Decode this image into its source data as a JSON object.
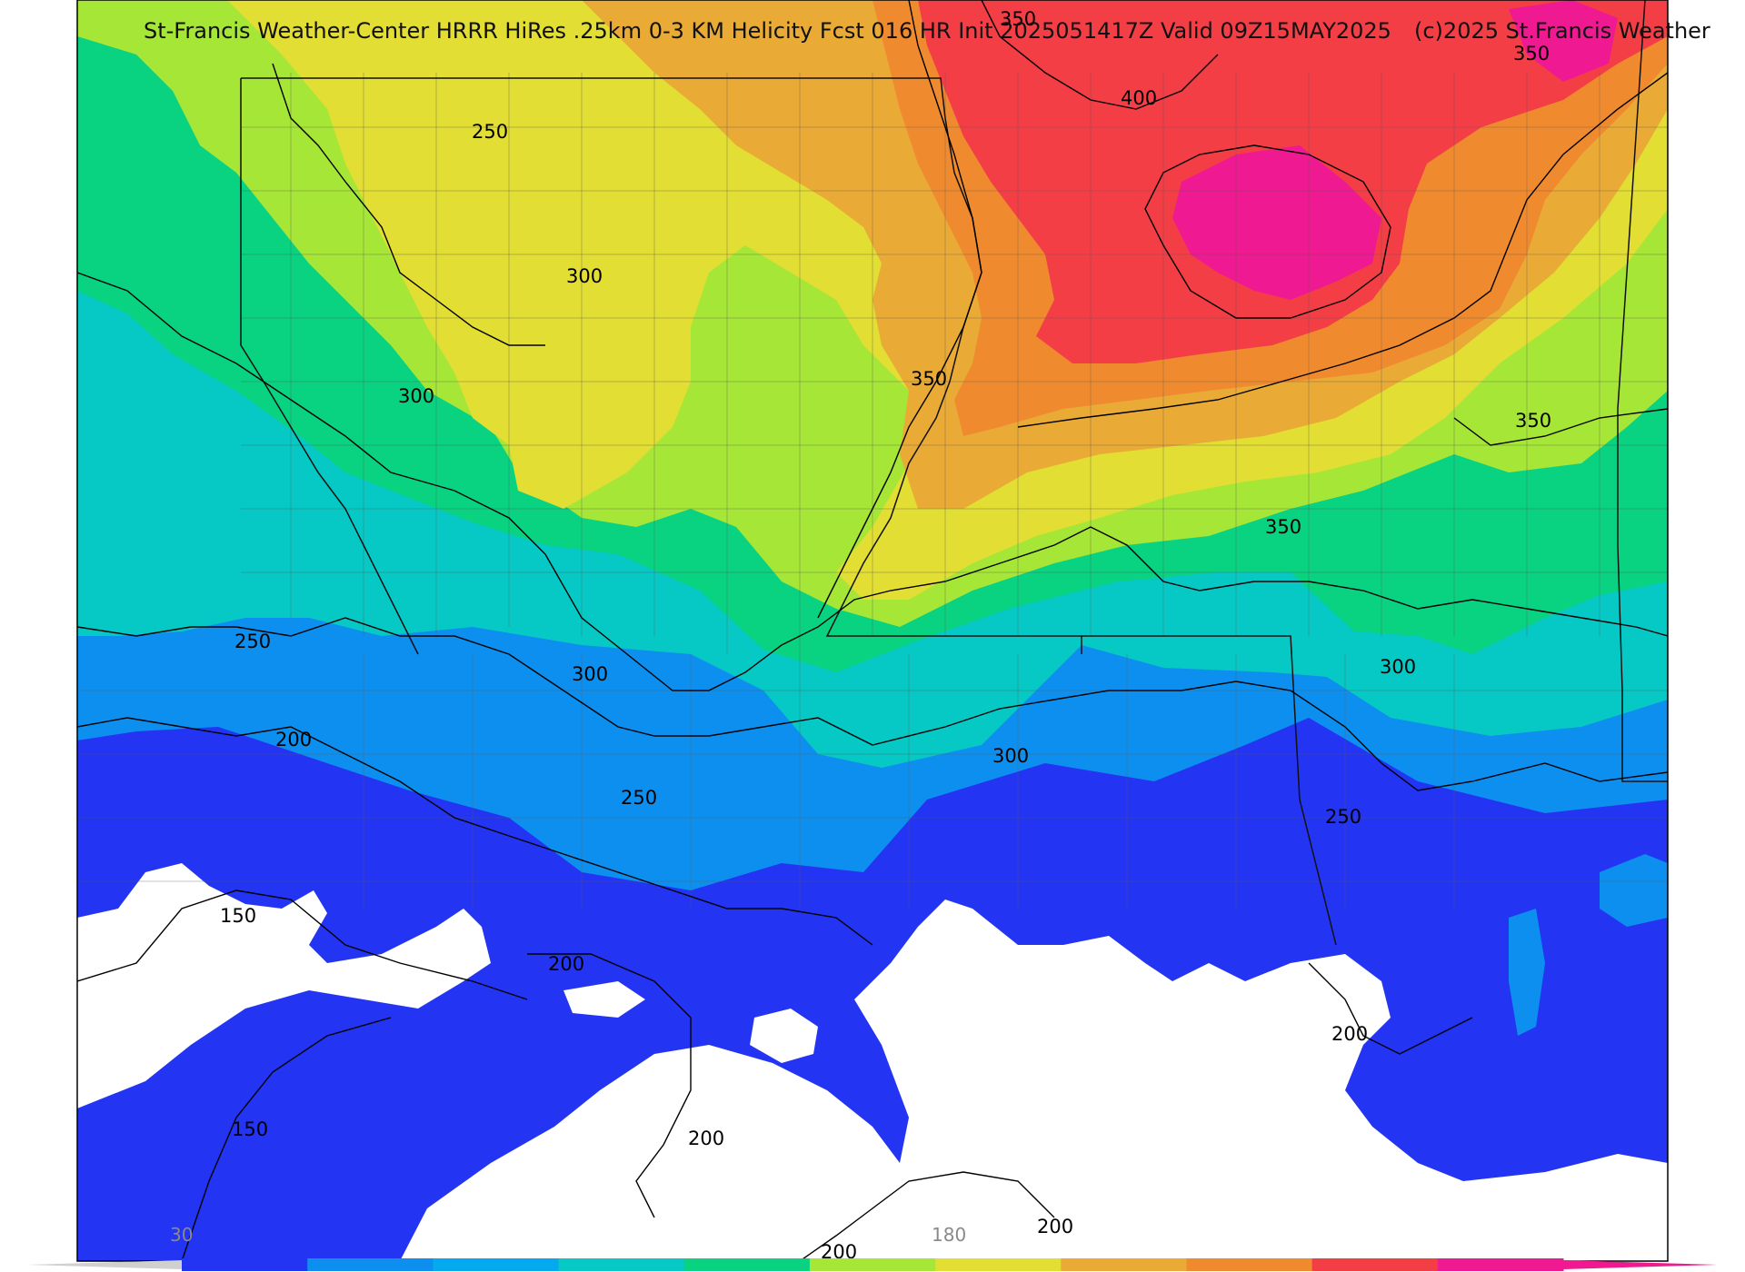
{
  "header": {
    "title": "St-Francis Weather-Center HRRR HiRes .25km 0-3 KM Helicity Fcst 016 HR Init 2025051417Z  Valid 09Z15MAY2025",
    "copyright": "(c)2025 St.Francis Weather"
  },
  "contour_labels": [
    "350",
    "350",
    "400",
    "250",
    "300",
    "300",
    "350",
    "350",
    "350",
    "250",
    "300",
    "300",
    "300",
    "200",
    "250",
    "250",
    "150",
    "200",
    "200",
    "150",
    "200",
    "200",
    "200"
  ],
  "colorbar": {
    "tick_labels": [
      "30",
      "180"
    ],
    "colors": [
      "#2335f2",
      "#0d8fef",
      "#04a9ee",
      "#06c8c4",
      "#09d281",
      "#a6e637",
      "#e2de33",
      "#e9ab35",
      "#f08a2e",
      "#f43e46",
      "#ef1a91"
    ]
  },
  "legend_colors": {
    "band_lt150": "#ffffff",
    "band_150_200": "#2335f2",
    "band_200_250": "#0d8fef",
    "band_250_300": "#06c8c4",
    "band_300_350": "#09d281",
    "band_350_400": "#a6e637",
    "band_400_450": "#e2de33",
    "band_450_500": "#e9ab35",
    "band_500_550": "#f08a2e",
    "band_550_600": "#f43e46",
    "band_600_plus": "#ef1a91"
  }
}
